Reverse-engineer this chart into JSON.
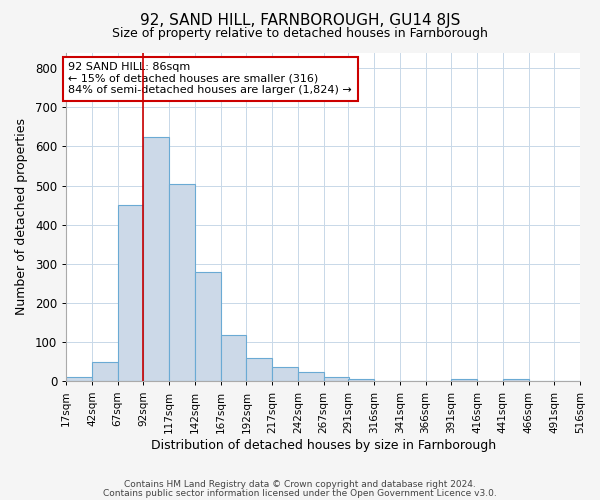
{
  "title": "92, SAND HILL, FARNBOROUGH, GU14 8JS",
  "subtitle": "Size of property relative to detached houses in Farnborough",
  "xlabel": "Distribution of detached houses by size in Farnborough",
  "ylabel": "Number of detached properties",
  "bin_edges": [
    17,
    42,
    67,
    92,
    117,
    142,
    167,
    192,
    217,
    242,
    267,
    291,
    316,
    341,
    366,
    391,
    416,
    441,
    466,
    491,
    516
  ],
  "counts": [
    10,
    50,
    450,
    625,
    505,
    280,
    118,
    60,
    37,
    25,
    10,
    7,
    0,
    0,
    0,
    5,
    0,
    5,
    0,
    0
  ],
  "bar_facecolor": "#ccd9e8",
  "bar_edgecolor": "#6aaad4",
  "vline_x": 92,
  "vline_color": "#cc0000",
  "annotation_text": "92 SAND HILL: 86sqm\n← 15% of detached houses are smaller (316)\n84% of semi-detached houses are larger (1,824) →",
  "annotation_box_edgecolor": "#cc0000",
  "ylim": [
    0,
    840
  ],
  "yticks": [
    0,
    100,
    200,
    300,
    400,
    500,
    600,
    700,
    800
  ],
  "footer_line1": "Contains HM Land Registry data © Crown copyright and database right 2024.",
  "footer_line2": "Contains public sector information licensed under the Open Government Licence v3.0.",
  "bg_color": "#f5f5f5",
  "plot_bg_color": "#ffffff",
  "grid_color": "#c8d8e8"
}
